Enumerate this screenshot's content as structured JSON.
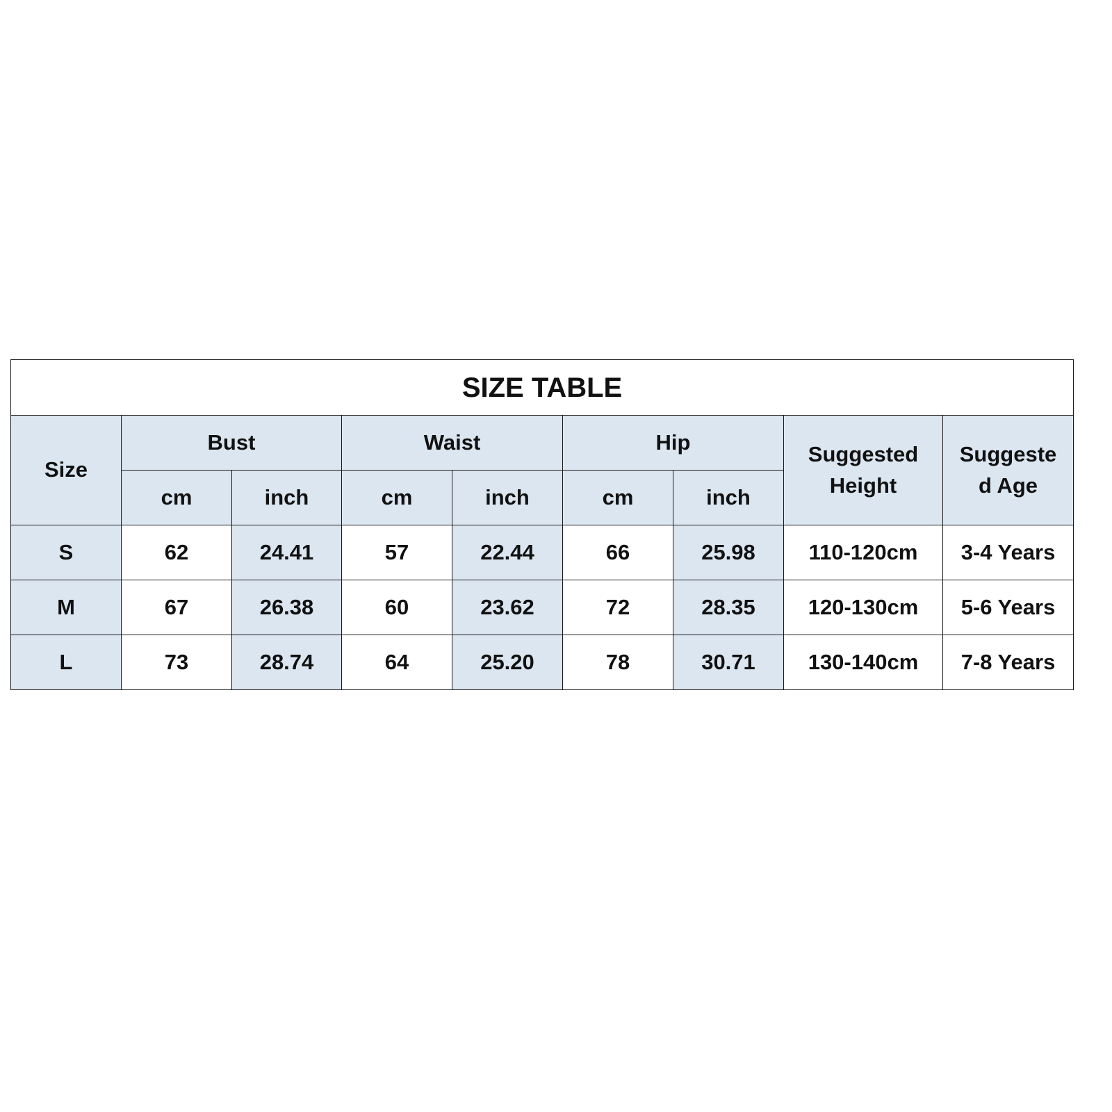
{
  "title": "SIZE TABLE",
  "header": {
    "size": "Size",
    "groups": [
      "Bust",
      "Waist",
      "Hip"
    ],
    "units": [
      "cm",
      "inch",
      "cm",
      "inch",
      "cm",
      "inch"
    ],
    "height_lines": [
      "Suggested",
      "Height"
    ],
    "age_lines": [
      "Suggeste",
      "d Age"
    ]
  },
  "colors": {
    "header_fill": "#dce6f1",
    "border": "#1a1a1a"
  },
  "rows": [
    {
      "size": "S",
      "values": [
        "62",
        "24.41",
        "57",
        "22.44",
        "66",
        "25.98"
      ],
      "height": "110-120cm",
      "age": "3-4 Years"
    },
    {
      "size": "M",
      "values": [
        "67",
        "26.38",
        "60",
        "23.62",
        "72",
        "28.35"
      ],
      "height": "120-130cm",
      "age": "5-6 Years"
    },
    {
      "size": "L",
      "values": [
        "73",
        "28.74",
        "64",
        "25.20",
        "78",
        "30.71"
      ],
      "height": "130-140cm",
      "age": "7-8 Years"
    }
  ]
}
